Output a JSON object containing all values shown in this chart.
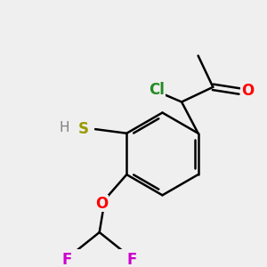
{
  "bg_color": "#efefef",
  "atom_colors": {
    "Cl": "#228B22",
    "O": "#FF0000",
    "S": "#999900",
    "F": "#CC00CC",
    "C": "#000000",
    "H": "#808080"
  },
  "bond_lw": 1.8,
  "font_size": 12
}
